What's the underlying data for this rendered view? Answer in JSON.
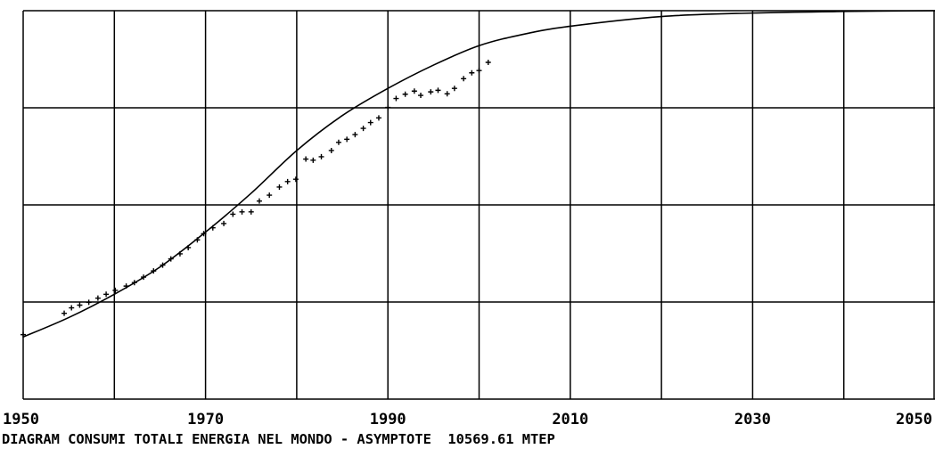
{
  "colors": {
    "background": "#ffffff",
    "ink": "#000000"
  },
  "chart_data": {
    "type": "scatter",
    "caption": "DIAGRAM CONSUMI TOTALI ENERGIA NEL MONDO - ASYMPTOTE  10569.61 MTEP",
    "xlim": [
      1950,
      2050
    ],
    "ylim": [
      0,
      1
    ],
    "y_unit": "fraction of asymptote",
    "asymptote_label": "10569.61 MTEP",
    "x_tick_labels": [
      "1950",
      "1970",
      "1990",
      "2010",
      "2030",
      "2050"
    ],
    "x_ticks": [
      1950,
      1970,
      1990,
      2010,
      2030,
      2050
    ],
    "grid": true,
    "v_gridlines": [
      1950,
      1960,
      1970,
      1980,
      1990,
      2000,
      2010,
      2020,
      2030,
      2040,
      2050
    ],
    "h_gridlines": [
      0,
      0.25,
      0.5,
      0.75,
      1
    ],
    "fitted_curve": {
      "x": [
        1950,
        1955,
        1960,
        1965,
        1970,
        1975,
        1980,
        1985,
        1990,
        1995,
        2000,
        2005,
        2010,
        2020,
        2030,
        2040,
        2050
      ],
      "y": [
        0.16,
        0.21,
        0.27,
        0.34,
        0.43,
        0.53,
        0.64,
        0.73,
        0.8,
        0.86,
        0.91,
        0.94,
        0.96,
        0.985,
        0.994,
        0.998,
        1.0
      ]
    },
    "points": {
      "x": [
        1950,
        1954.5,
        1955.3,
        1956.2,
        1957.2,
        1958.2,
        1959.1,
        1960.1,
        1961.3,
        1962.2,
        1963.2,
        1964.3,
        1965.3,
        1966.2,
        1967.2,
        1968.1,
        1969.1,
        1969.8,
        1970.8,
        1972,
        1973,
        1974,
        1975,
        1975.9,
        1977,
        1978.1,
        1979,
        1979.9,
        1981,
        1981.8,
        1982.7,
        1983.8,
        1984.6,
        1985.5,
        1986.4,
        1987.3,
        1988.1,
        1989,
        1990,
        1990.9,
        1991.9,
        1992.9,
        1993.6,
        1994.7,
        1995.5,
        1996.5,
        1997.3,
        1998.3,
        1999.2,
        2000,
        2001
      ],
      "y": [
        0.166,
        0.221,
        0.235,
        0.242,
        0.249,
        0.26,
        0.27,
        0.28,
        0.291,
        0.3,
        0.314,
        0.33,
        0.345,
        0.361,
        0.374,
        0.39,
        0.41,
        0.426,
        0.441,
        0.452,
        0.476,
        0.482,
        0.482,
        0.51,
        0.525,
        0.546,
        0.56,
        0.566,
        0.618,
        0.615,
        0.624,
        0.64,
        0.661,
        0.669,
        0.681,
        0.697,
        0.712,
        0.724,
        0.751,
        0.774,
        0.785,
        0.793,
        0.782,
        0.791,
        0.795,
        0.786,
        0.8,
        0.825,
        0.84,
        0.846,
        0.867
      ]
    }
  }
}
